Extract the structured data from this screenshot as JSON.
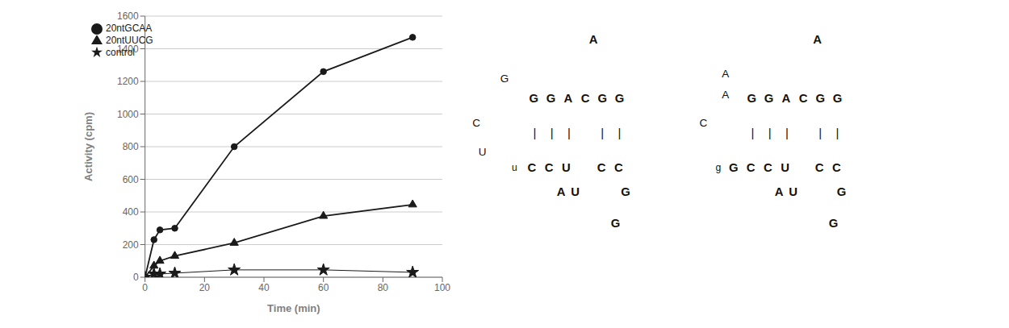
{
  "chart_data": {
    "type": "line",
    "x": [
      0,
      3,
      5,
      10,
      30,
      60,
      90
    ],
    "series": [
      {
        "name": "20ntGCAA",
        "color": "#1a1a1a",
        "marker": "circle",
        "values": [
          0,
          230,
          290,
          300,
          800,
          1260,
          1470
        ]
      },
      {
        "name": "20ntUUCG",
        "color": "#1a1a1a",
        "marker": "triangle",
        "values": [
          0,
          70,
          100,
          130,
          210,
          375,
          445
        ]
      },
      {
        "name": "control",
        "color": "#1a1a1a",
        "marker": "star",
        "values": [
          0,
          20,
          20,
          25,
          45,
          45,
          30
        ]
      }
    ],
    "xlabel": "Time (min)",
    "ylabel": "Activity (cpm)",
    "xlim": [
      0,
      100
    ],
    "ylim": [
      0,
      1600
    ],
    "xticks": [
      0,
      20,
      40,
      60,
      80,
      100
    ],
    "yticks": [
      0,
      200,
      400,
      600,
      800,
      1000,
      1200,
      1400,
      1600
    ],
    "grid": "y",
    "legend": "upper left",
    "annotations": [
      "A",
      "G",
      "G",
      "G",
      "A",
      "C",
      "G",
      "G",
      "C",
      "|",
      "|",
      "|",
      "|",
      "|",
      "U",
      "u",
      "C",
      "C",
      "U",
      "C",
      "C",
      "A",
      "U",
      "G",
      "G",
      "A",
      "A",
      "A",
      "G",
      "G",
      "A",
      "C",
      "G",
      "G",
      "C",
      "|",
      "|",
      "|",
      "|",
      "|",
      "g",
      "G",
      "C",
      "C",
      "U",
      "C",
      "C",
      "A",
      "U",
      "G",
      "G"
    ]
  }
}
